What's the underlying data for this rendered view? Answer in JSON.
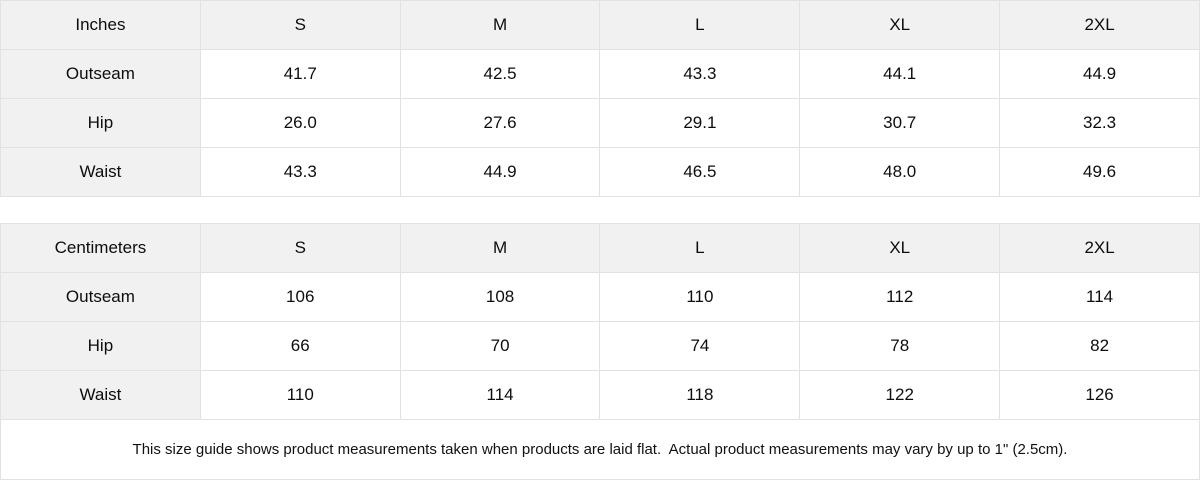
{
  "tables": [
    {
      "unit": "inches",
      "header": [
        "Inches",
        "S",
        "M",
        "L",
        "XL",
        "2XL"
      ],
      "rows": [
        {
          "label": "Outseam",
          "values": [
            "41.7",
            "42.5",
            "43.3",
            "44.1",
            "44.9"
          ]
        },
        {
          "label": "Hip",
          "values": [
            "26.0",
            "27.6",
            "29.1",
            "30.7",
            "32.3"
          ]
        },
        {
          "label": "Waist",
          "values": [
            "43.3",
            "44.9",
            "46.5",
            "48.0",
            "49.6"
          ]
        }
      ]
    },
    {
      "unit": "centimeters",
      "header": [
        "Centimeters",
        "S",
        "M",
        "L",
        "XL",
        "2XL"
      ],
      "rows": [
        {
          "label": "Outseam",
          "values": [
            "106",
            "108",
            "110",
            "112",
            "114"
          ]
        },
        {
          "label": "Hip",
          "values": [
            "66",
            "70",
            "74",
            "78",
            "82"
          ]
        },
        {
          "label": "Waist",
          "values": [
            "110",
            "114",
            "118",
            "122",
            "126"
          ]
        }
      ]
    }
  ],
  "footer": {
    "note": "This size guide shows product measurements taken when products are laid flat.  Actual product measurements may vary by up to 1\" (2.5cm)."
  },
  "colors": {
    "header_bg": "#f1f1f1",
    "border": "#e2e2e2",
    "text": "#0d0d0d",
    "background": "#ffffff"
  },
  "chart_data": [
    {
      "type": "table",
      "title": "Inches",
      "columns": [
        "Inches",
        "S",
        "M",
        "L",
        "XL",
        "2XL"
      ],
      "rows": [
        [
          "Outseam",
          41.7,
          42.5,
          43.3,
          44.1,
          44.9
        ],
        [
          "Hip",
          26.0,
          27.6,
          29.1,
          30.7,
          32.3
        ],
        [
          "Waist",
          43.3,
          44.9,
          46.5,
          48.0,
          49.6
        ]
      ]
    },
    {
      "type": "table",
      "title": "Centimeters",
      "columns": [
        "Centimeters",
        "S",
        "M",
        "L",
        "XL",
        "2XL"
      ],
      "rows": [
        [
          "Outseam",
          106,
          108,
          110,
          112,
          114
        ],
        [
          "Hip",
          66,
          70,
          74,
          78,
          82
        ],
        [
          "Waist",
          110,
          114,
          118,
          122,
          126
        ]
      ]
    }
  ]
}
